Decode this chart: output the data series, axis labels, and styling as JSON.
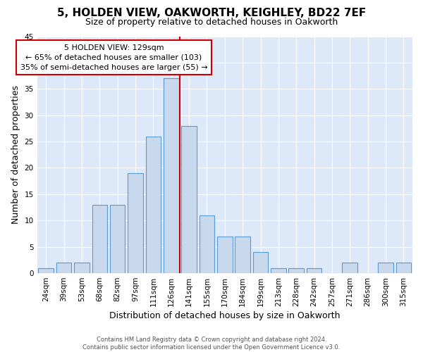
{
  "title": "5, HOLDEN VIEW, OAKWORTH, KEIGHLEY, BD22 7EF",
  "subtitle": "Size of property relative to detached houses in Oakworth",
  "xlabel": "Distribution of detached houses by size in Oakworth",
  "ylabel": "Number of detached properties",
  "categories": [
    "24sqm",
    "39sqm",
    "53sqm",
    "68sqm",
    "82sqm",
    "97sqm",
    "111sqm",
    "126sqm",
    "141sqm",
    "155sqm",
    "170sqm",
    "184sqm",
    "199sqm",
    "213sqm",
    "228sqm",
    "242sqm",
    "257sqm",
    "271sqm",
    "286sqm",
    "300sqm",
    "315sqm"
  ],
  "values": [
    1,
    2,
    2,
    13,
    13,
    19,
    26,
    37,
    28,
    11,
    7,
    7,
    4,
    1,
    1,
    1,
    0,
    2,
    0,
    2,
    2
  ],
  "bar_color": "#c9d9ed",
  "bar_edge_color": "#5b9bd5",
  "property_line_color": "#cc0000",
  "annotation_text": "5 HOLDEN VIEW: 129sqm\n← 65% of detached houses are smaller (103)\n35% of semi-detached houses are larger (55) →",
  "annotation_box_color": "#ffffff",
  "annotation_box_edge_color": "#cc0000",
  "ylim": [
    0,
    45
  ],
  "yticks": [
    0,
    5,
    10,
    15,
    20,
    25,
    30,
    35,
    40,
    45
  ],
  "background_color": "#dde8f8",
  "grid_color": "#ffffff",
  "fig_background": "#ffffff",
  "footer_text": "Contains HM Land Registry data © Crown copyright and database right 2024.\nContains public sector information licensed under the Open Government Licence v3.0.",
  "title_fontsize": 11,
  "subtitle_fontsize": 9,
  "xlabel_fontsize": 9,
  "ylabel_fontsize": 9,
  "tick_fontsize": 7.5,
  "annotation_fontsize": 8
}
